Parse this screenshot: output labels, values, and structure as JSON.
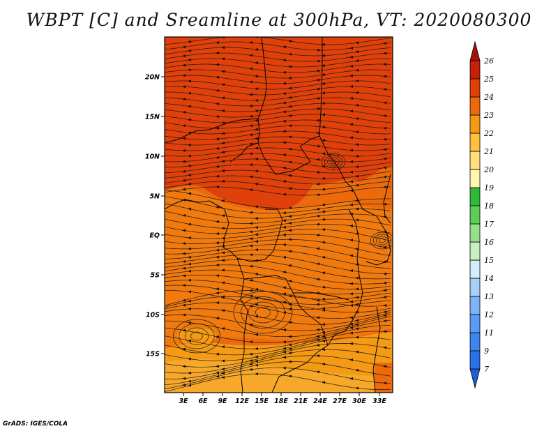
{
  "title": "WBPT [C] and Sreamline at 300hPa, VT: 2020080300",
  "credit": "GrADS: IGES/COLA",
  "map": {
    "lat_labels": [
      "20N",
      "15N",
      "10N",
      "5N",
      "EQ",
      "5S",
      "10S",
      "15S"
    ],
    "lon_labels": [
      "3E",
      "6E",
      "9E",
      "12E",
      "15E",
      "18E",
      "21E",
      "24E",
      "27E",
      "30E",
      "33E"
    ]
  },
  "colorbar": {
    "labels": [
      "7",
      "9",
      "11",
      "12",
      "13",
      "14",
      "15",
      "16",
      "17",
      "18",
      "19",
      "20",
      "21",
      "22",
      "23",
      "24",
      "25",
      "26"
    ],
    "colors": [
      "#1c5fd8",
      "#2a72e6",
      "#3c86ee",
      "#5a9cf2",
      "#7eb4f6",
      "#a6cffa",
      "#d4ecfb",
      "#c8f0c0",
      "#96e08a",
      "#5ccf58",
      "#2fb83a",
      "#fff7b0",
      "#ffe07a",
      "#ffc040",
      "#f59a14",
      "#ec6a0c",
      "#e0400a",
      "#c8200a",
      "#a8100a"
    ]
  }
}
